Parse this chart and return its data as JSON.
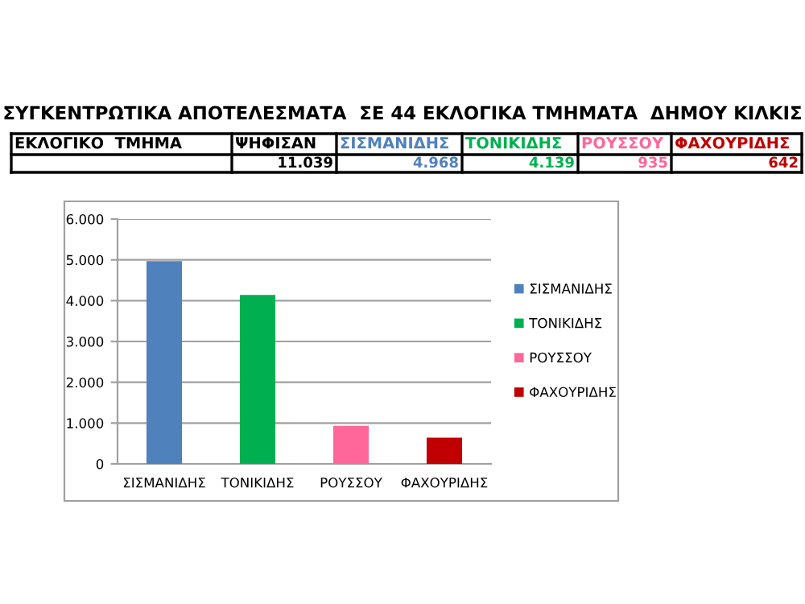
{
  "chart_data": {
    "type": "bar",
    "title": "ΣΥΓΚΕΝΤΡΩΤΙΚΑ ΑΠΟΤΕΛΕΣΜΑΤΑ  ΣΕ 44 ΕΚΛΟΓΙΚΑ ΤΜΗΜΑΤΑ  ΔΗΜΟΥ ΚΙΛΚΙΣ",
    "annotations": [
      "ΕΚΛΟΓΙΚΟ  ΤΜΗΜΑ",
      "ΨΗΦΙΣΑΝ",
      "11.039",
      "4.968",
      "4.139",
      "935",
      "642"
    ],
    "categories": [
      "ΣΙΣΜΑΝΙΔΗΣ",
      "ΤΟΝΙΚΙΔΗΣ",
      "ΡΟΥΣΣΟΥ",
      "ΦΑΧΟΥΡΙΔΗΣ"
    ],
    "series": [
      {
        "name": "ΣΙΣΜΑΝΙΔΗΣ",
        "color": "#4f81bd",
        "values": [
          4968,
          null,
          null,
          null
        ]
      },
      {
        "name": "ΤΟΝΙΚΙΔΗΣ",
        "color": "#00b050",
        "values": [
          null,
          4139,
          null,
          null
        ]
      },
      {
        "name": "ΡΟΥΣΣΟΥ",
        "color": "#ff6699",
        "values": [
          null,
          null,
          935,
          null
        ]
      },
      {
        "name": "ΦΑΧΟΥΡΙΔΗΣ",
        "color": "#c00000",
        "values": [
          null,
          null,
          null,
          642
        ]
      }
    ],
    "ylim": [
      0,
      6000
    ],
    "yticks": [
      {
        "value": 0,
        "label": "0"
      },
      {
        "value": 1000,
        "label": "1.000"
      },
      {
        "value": 2000,
        "label": "2.000"
      },
      {
        "value": 3000,
        "label": "3.000"
      },
      {
        "value": 4000,
        "label": "4.000"
      },
      {
        "value": 5000,
        "label": "5.000"
      },
      {
        "value": 6000,
        "label": "6.000"
      }
    ],
    "grid": "y",
    "legend": "right"
  }
}
